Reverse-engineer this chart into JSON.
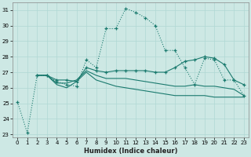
{
  "xlabel": "Humidex (Indice chaleur)",
  "bg_color": "#cde8e4",
  "grid_color": "#b0d8d4",
  "line_color": "#1a7a6e",
  "xlim": [
    -0.5,
    23.5
  ],
  "ylim": [
    22.8,
    31.5
  ],
  "yticks": [
    23,
    24,
    25,
    26,
    27,
    28,
    29,
    30,
    31
  ],
  "xticks": [
    0,
    1,
    2,
    3,
    4,
    5,
    6,
    7,
    8,
    9,
    10,
    11,
    12,
    13,
    14,
    15,
    16,
    17,
    18,
    19,
    20,
    21,
    22,
    23
  ],
  "line1_x": [
    0,
    1,
    2,
    3,
    4,
    5,
    6,
    7,
    8,
    9,
    10,
    11,
    12,
    13,
    14,
    15,
    16,
    17,
    18,
    19,
    20,
    21,
    22,
    23
  ],
  "line1_y": [
    25.1,
    23.1,
    26.8,
    26.8,
    26.4,
    26.2,
    26.1,
    27.8,
    27.3,
    29.8,
    29.8,
    31.1,
    30.85,
    30.5,
    30.0,
    28.4,
    28.4,
    27.3,
    26.2,
    27.9,
    27.8,
    26.5,
    26.5,
    25.5
  ],
  "line2_x": [
    2,
    3,
    4,
    5,
    6,
    7,
    8,
    9,
    10,
    11,
    12,
    13,
    14,
    15,
    16,
    17,
    18,
    19,
    20,
    21,
    22,
    23
  ],
  "line2_y": [
    26.8,
    26.8,
    26.5,
    26.5,
    26.4,
    27.3,
    27.1,
    27.0,
    27.1,
    27.1,
    27.1,
    27.1,
    27.0,
    27.0,
    27.3,
    27.7,
    27.8,
    28.0,
    27.9,
    27.5,
    26.5,
    26.2
  ],
  "line3_x": [
    2,
    3,
    4,
    5,
    6,
    7,
    8,
    9,
    10,
    11,
    12,
    13,
    14,
    15,
    16,
    17,
    18,
    19,
    20,
    21,
    22,
    23
  ],
  "line3_y": [
    26.8,
    26.8,
    26.3,
    26.3,
    26.5,
    27.1,
    26.8,
    26.6,
    26.6,
    26.6,
    26.5,
    26.4,
    26.3,
    26.2,
    26.1,
    26.1,
    26.2,
    26.1,
    26.1,
    26.0,
    25.9,
    25.5
  ],
  "line4_x": [
    2,
    3,
    4,
    5,
    6,
    7,
    8,
    9,
    10,
    11,
    12,
    13,
    14,
    15,
    16,
    17,
    18,
    19,
    20,
    21,
    22,
    23
  ],
  "line4_y": [
    26.8,
    26.8,
    26.2,
    26.0,
    26.4,
    27.0,
    26.5,
    26.3,
    26.1,
    26.0,
    25.9,
    25.8,
    25.7,
    25.6,
    25.5,
    25.5,
    25.5,
    25.5,
    25.4,
    25.4,
    25.4,
    25.4
  ]
}
